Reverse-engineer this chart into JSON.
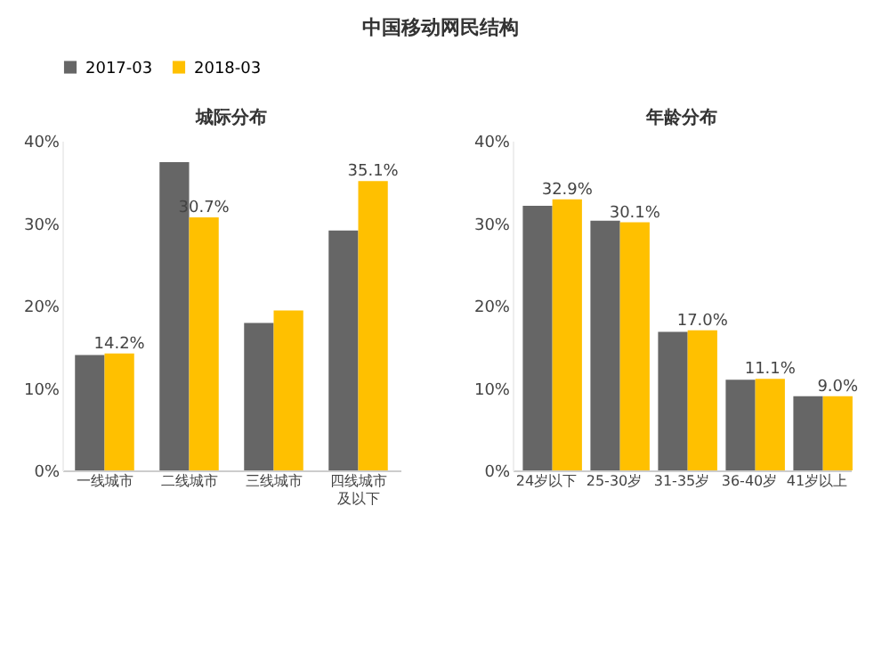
{
  "chart_data": [
    {
      "type": "bar",
      "title": "城际分布",
      "annotations": [
        "中国移动网民结构"
      ],
      "categories": [
        "一线城市",
        "二线城市",
        "三线城市",
        "四线城市及以下"
      ],
      "series": [
        {
          "name": "2017-03",
          "color": "#666666",
          "values": [
            14.0,
            37.4,
            17.9,
            29.1
          ]
        },
        {
          "name": "2018-03",
          "color": "#ffc000",
          "values": [
            14.2,
            30.7,
            19.4,
            35.1
          ],
          "value_labels": [
            "14.2%",
            "30.7%",
            null,
            "35.1%"
          ]
        }
      ],
      "ylim": [
        0,
        40
      ],
      "yticks": [
        {
          "value": 0,
          "label": "0%"
        },
        {
          "value": 10,
          "label": "10%"
        },
        {
          "value": 20,
          "label": "20%"
        },
        {
          "value": 30,
          "label": "30%"
        },
        {
          "value": 40,
          "label": "40%"
        }
      ],
      "legend": "top"
    },
    {
      "type": "bar",
      "title": "年龄分布",
      "categories": [
        "24岁以下",
        "25-30岁",
        "31-35岁",
        "36-40岁",
        "41岁以上"
      ],
      "series": [
        {
          "name": "2017-03",
          "color": "#666666",
          "values": [
            32.1,
            30.3,
            16.8,
            11.0,
            9.0
          ]
        },
        {
          "name": "2018-03",
          "color": "#ffc000",
          "values": [
            32.9,
            30.1,
            17.0,
            11.1,
            9.0
          ],
          "value_labels": [
            "32.9%",
            "30.1%",
            "17.0%",
            "11.1%",
            "9.0%"
          ]
        }
      ],
      "ylim": [
        0,
        40
      ],
      "yticks": [
        {
          "value": 0,
          "label": "0%"
        },
        {
          "value": 10,
          "label": "10%"
        },
        {
          "value": 20,
          "label": "20%"
        },
        {
          "value": 30,
          "label": "30%"
        },
        {
          "value": 40,
          "label": "40%"
        }
      ],
      "legend": "top"
    }
  ]
}
